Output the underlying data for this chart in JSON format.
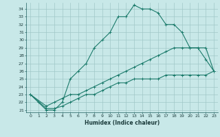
{
  "xlabel": "Humidex (Indice chaleur)",
  "bg_color": "#c8e8e8",
  "grid_color": "#a0c8c8",
  "line_color": "#1a7a6a",
  "xlim": [
    -0.5,
    23.5
  ],
  "ylim": [
    20.7,
    34.8
  ],
  "yticks": [
    21,
    22,
    23,
    24,
    25,
    26,
    27,
    28,
    29,
    30,
    31,
    32,
    33,
    34
  ],
  "xticks": [
    0,
    1,
    2,
    3,
    4,
    5,
    6,
    7,
    8,
    9,
    10,
    11,
    12,
    13,
    14,
    15,
    16,
    17,
    18,
    19,
    20,
    21,
    22,
    23
  ],
  "curve1_x": [
    0,
    1,
    2,
    3,
    4,
    5,
    6,
    7,
    8,
    9,
    10,
    11,
    12,
    13,
    14,
    15,
    16,
    17,
    18,
    19,
    20,
    21,
    22,
    23
  ],
  "curve1_y": [
    23,
    22,
    21,
    21,
    22,
    25,
    26,
    27,
    29,
    30,
    31,
    33,
    33,
    34.5,
    34,
    34,
    33.5,
    32,
    32,
    31,
    29,
    29,
    27.5,
    26
  ],
  "curve2_x": [
    0,
    2,
    3,
    4,
    5,
    6,
    7,
    8,
    9,
    10,
    11,
    12,
    13,
    14,
    15,
    16,
    17,
    18,
    19,
    20,
    21,
    22,
    23
  ],
  "curve2_y": [
    23,
    21.5,
    22,
    22.5,
    23,
    23,
    23.5,
    24,
    24.5,
    25,
    25.5,
    26,
    26.5,
    27,
    27.5,
    28,
    28.5,
    29,
    29,
    29,
    29,
    29,
    26
  ],
  "curve3_x": [
    0,
    2,
    3,
    4,
    5,
    6,
    7,
    8,
    9,
    10,
    11,
    12,
    13,
    14,
    15,
    16,
    17,
    18,
    19,
    20,
    21,
    22,
    23
  ],
  "curve3_y": [
    23,
    21.2,
    21.2,
    21.5,
    22,
    22.5,
    23,
    23,
    23.5,
    24,
    24.5,
    24.5,
    25,
    25,
    25,
    25,
    25.5,
    25.5,
    25.5,
    25.5,
    25.5,
    25.5,
    26
  ]
}
